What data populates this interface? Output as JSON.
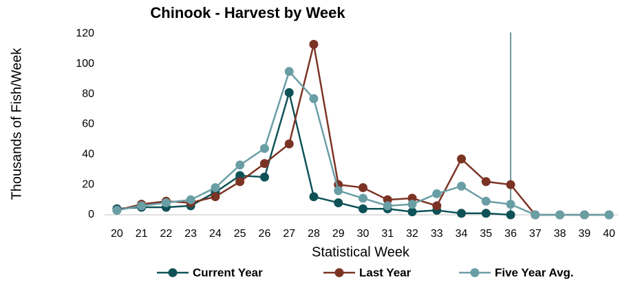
{
  "chart_data": {
    "type": "line",
    "title": "Chinook - Harvest by Week",
    "xlabel": "Statistical Week",
    "ylabel": "Thousands of Fish/Week",
    "categories": [
      "20",
      "21",
      "22",
      "23",
      "24",
      "25",
      "26",
      "27",
      "28",
      "29",
      "30",
      "31",
      "32",
      "33",
      "34",
      "35",
      "36",
      "37",
      "38",
      "39",
      "40"
    ],
    "series": [
      {
        "name": "Current Year",
        "color": "#0e5258",
        "values": [
          4,
          5,
          5,
          6,
          15,
          26,
          25,
          81,
          12,
          8,
          4,
          4,
          2,
          3,
          1,
          1,
          0,
          null,
          null,
          null,
          null
        ]
      },
      {
        "name": "Last Year",
        "color": "#7b3324",
        "values": [
          3,
          7,
          9,
          8,
          12,
          22,
          34,
          47,
          113,
          20,
          18,
          10,
          11,
          6,
          37,
          22,
          20,
          0,
          0,
          0,
          0
        ]
      },
      {
        "name": "Five Year Avg.",
        "color": "#6a9ea5",
        "values": [
          3,
          6,
          8,
          10,
          18,
          33,
          44,
          95,
          77,
          16,
          11,
          6,
          7,
          14,
          19,
          9,
          7,
          0,
          0,
          0,
          0
        ]
      }
    ],
    "ylim": [
      0,
      120
    ],
    "yticks": [
      0,
      20,
      40,
      60,
      80,
      100,
      120
    ],
    "grid": false,
    "legend": "bottom"
  }
}
